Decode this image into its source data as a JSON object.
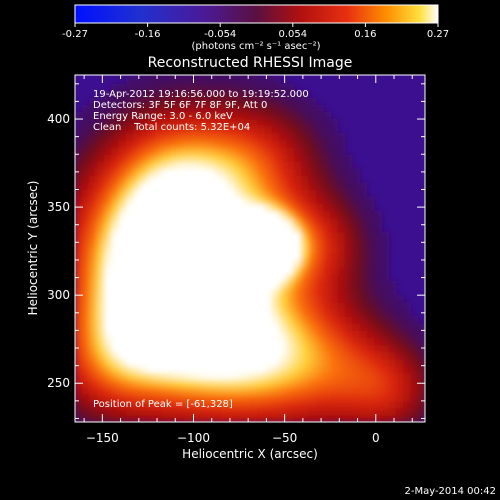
{
  "chart_data": {
    "type": "heatmap",
    "title": "Reconstructed RHESSI Image",
    "colorbar": {
      "ticks": [
        "-0.27",
        "-0.16",
        "-0.054",
        "0.054",
        "0.16",
        "0.27"
      ],
      "range": [
        -0.27,
        0.27
      ],
      "unit_label": "(photons cm⁻² s⁻¹ asec⁻²)",
      "colormap": "blue-purple-red-yellow-white"
    },
    "xlabel": "Heliocentric X (arcsec)",
    "ylabel": "Heliocentric Y (arcsec)",
    "xlim": [
      -165,
      27
    ],
    "ylim": [
      228,
      425
    ],
    "xticks": [
      -150,
      -100,
      -50,
      0
    ],
    "yticks": [
      250,
      300,
      350,
      400
    ],
    "xtick_labels": [
      "−150",
      "−100",
      "−50",
      "0"
    ],
    "ytick_labels": [
      "250",
      "300",
      "350",
      "400"
    ],
    "annotations": [
      "19-Apr-2012 19:16:56.000 to 19:19:52.000",
      "Detectors: 3F 5F 6F 7F 8F 9F, Att 0",
      "Energy Range: 3.0 - 6.0 keV",
      "Clean    Total counts: 5.32E+04"
    ],
    "peak_label": "Position of Peak = [-61,328]",
    "peak": {
      "x": -61,
      "y": 328,
      "value": 0.27
    },
    "timestamp": "2-May-2014 00:42"
  },
  "colors": {
    "background": "#000000",
    "foreground": "#ffffff",
    "low": "#3b0f8f",
    "mid": "#b01010",
    "high": "#ffffff"
  }
}
